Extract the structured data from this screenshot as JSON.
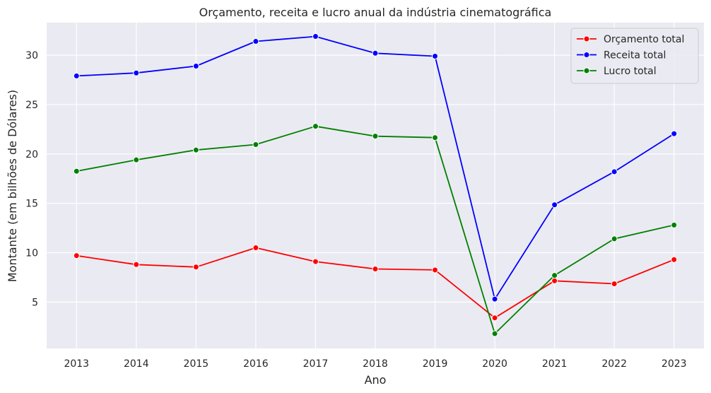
{
  "chart_data": {
    "type": "line",
    "title": "Orçamento, receita e lucro anual da indústria cinematográfica",
    "xlabel": "Ano",
    "ylabel": "Montante (em bilhões de Dólares)",
    "x": [
      2013,
      2014,
      2015,
      2016,
      2017,
      2018,
      2019,
      2020,
      2021,
      2022,
      2023
    ],
    "xlim": [
      2012.5,
      2023.5
    ],
    "ylim": [
      0.3,
      33.3
    ],
    "yticks": [
      5,
      10,
      15,
      20,
      25,
      30
    ],
    "grid": true,
    "legend_position": "top-right",
    "series": [
      {
        "name": "Orçamento total",
        "color": "#ff0000",
        "values": [
          9.7,
          8.8,
          8.55,
          10.5,
          9.1,
          8.35,
          8.25,
          3.4,
          7.15,
          6.85,
          9.3
        ]
      },
      {
        "name": "Receita total",
        "color": "#0000ff",
        "values": [
          27.9,
          28.2,
          28.9,
          31.4,
          31.9,
          30.2,
          29.9,
          5.3,
          14.85,
          18.2,
          22.05
        ]
      },
      {
        "name": "Lucro total",
        "color": "#008000",
        "values": [
          18.25,
          19.4,
          20.4,
          20.95,
          22.8,
          21.8,
          21.65,
          1.8,
          7.7,
          11.4,
          12.8
        ]
      }
    ]
  }
}
